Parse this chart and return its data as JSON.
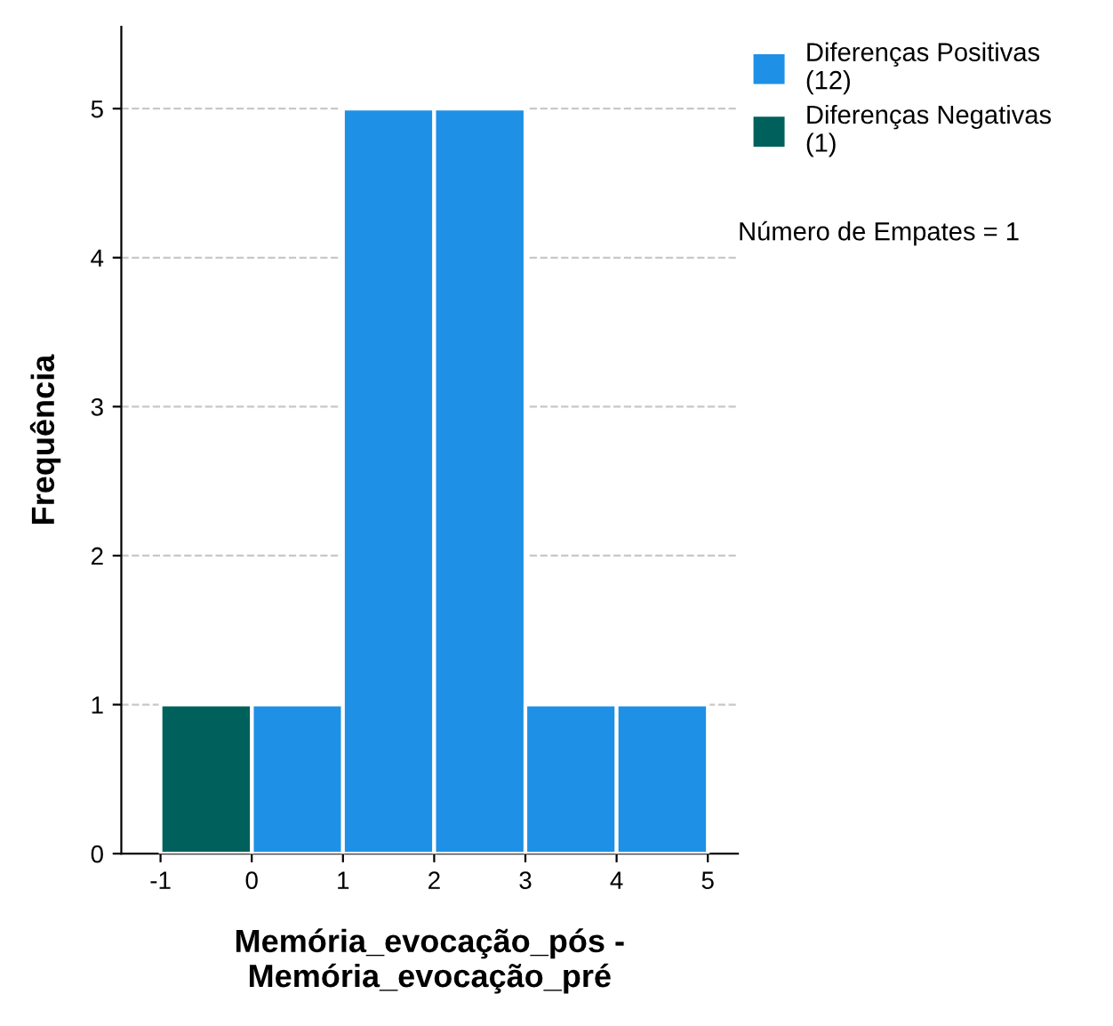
{
  "chart_data": {
    "type": "histogram",
    "xlabel": "Memória_evocação_pós -\nMemória_evocação_pré",
    "ylabel": "Frequência",
    "bins": [
      -1,
      0,
      1,
      2,
      3,
      4,
      5
    ],
    "series": [
      {
        "name": "Diferenças Positivas\n(12)",
        "color": "#1e90e6",
        "values": [
          null,
          1,
          5,
          5,
          1,
          1
        ]
      },
      {
        "name": "Diferenças Negativas\n(1)",
        "color": "#00615c",
        "values": [
          1,
          null,
          null,
          null,
          null,
          null
        ]
      }
    ],
    "annotations": [
      "Número de Empates = 1"
    ],
    "xlim": [
      -1.43,
      5.33
    ],
    "ylim": [
      0,
      5.55
    ],
    "xticks": [
      -1,
      0,
      1,
      2,
      3,
      4,
      5
    ],
    "yticks": [
      0,
      1,
      2,
      3,
      4,
      5
    ],
    "grid": "y",
    "legend": "top right"
  }
}
